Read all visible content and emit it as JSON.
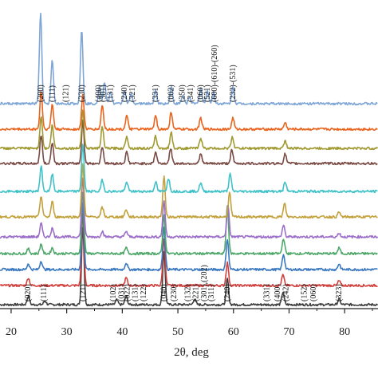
{
  "chart_data": {
    "type": "line",
    "title": "",
    "xlabel": "2θ, deg",
    "ylabel": "",
    "xlim": [
      18,
      86
    ],
    "x_ticks": [
      "20",
      "30",
      "40",
      "50",
      "60",
      "70",
      "80"
    ],
    "x_tick_values": [
      20,
      30,
      40,
      50,
      60,
      70,
      80
    ],
    "legend": "none",
    "grid": false,
    "series": [
      {
        "color": "#3f3f3f",
        "peaks": [
          [
            23.1,
            0.09
          ],
          [
            26.1,
            0.04
          ],
          [
            32.9,
            0.82
          ],
          [
            39.0,
            0.05
          ],
          [
            40.7,
            0.09
          ],
          [
            47.5,
            0.56
          ],
          [
            53.0,
            0.06
          ],
          [
            58.9,
            0.27
          ],
          [
            68.9,
            0.13
          ],
          [
            79.0,
            0.06
          ]
        ]
      },
      {
        "color": "#d2403d",
        "peaks": [
          [
            23.1,
            0.08
          ],
          [
            32.9,
            0.75
          ],
          [
            40.7,
            0.08
          ],
          [
            47.5,
            0.5
          ],
          [
            58.9,
            0.24
          ],
          [
            68.9,
            0.11
          ],
          [
            79.0,
            0.05
          ]
        ]
      },
      {
        "color": "#3a79c1",
        "peaks": [
          [
            23.1,
            0.06
          ],
          [
            25.4,
            0.09
          ],
          [
            32.9,
            0.7
          ],
          [
            40.7,
            0.07
          ],
          [
            47.5,
            0.45
          ],
          [
            58.9,
            0.32
          ],
          [
            69.0,
            0.16
          ],
          [
            79.0,
            0.06
          ]
        ]
      },
      {
        "color": "#4fa86a",
        "peaks": [
          [
            23.1,
            0.05
          ],
          [
            25.4,
            0.1
          ],
          [
            27.4,
            0.06
          ],
          [
            32.9,
            0.65
          ],
          [
            40.7,
            0.06
          ],
          [
            47.5,
            0.4
          ],
          [
            58.9,
            0.5
          ],
          [
            69.0,
            0.16
          ],
          [
            79.0,
            0.06
          ]
        ]
      },
      {
        "color": "#9b6ec9",
        "peaks": [
          [
            25.4,
            0.14
          ],
          [
            27.4,
            0.09
          ],
          [
            32.9,
            0.62
          ],
          [
            36.4,
            0.06
          ],
          [
            40.7,
            0.06
          ],
          [
            47.5,
            0.38
          ],
          [
            59.0,
            0.33
          ],
          [
            69.0,
            0.12
          ],
          [
            79.0,
            0.04
          ]
        ]
      },
      {
        "color": "#c3a13d",
        "peaks": [
          [
            25.4,
            0.22
          ],
          [
            27.4,
            0.16
          ],
          [
            32.9,
            0.55
          ],
          [
            36.4,
            0.1
          ],
          [
            40.7,
            0.08
          ],
          [
            47.5,
            0.42
          ],
          [
            59.3,
            0.25
          ],
          [
            69.2,
            0.14
          ],
          [
            79.0,
            0.05
          ]
        ]
      },
      {
        "color": "#3fc2c8",
        "peaks": [
          [
            25.4,
            0.26
          ],
          [
            27.4,
            0.18
          ],
          [
            32.9,
            0.5
          ],
          [
            36.4,
            0.12
          ],
          [
            40.8,
            0.1
          ],
          [
            46.0,
            0.1
          ],
          [
            48.3,
            0.14
          ],
          [
            54.1,
            0.09
          ],
          [
            59.4,
            0.18
          ],
          [
            69.3,
            0.1
          ]
        ]
      },
      {
        "color": "#7a4a44",
        "peaks": [
          [
            25.4,
            0.3
          ],
          [
            27.4,
            0.22
          ],
          [
            32.9,
            0.45
          ],
          [
            36.4,
            0.18
          ],
          [
            40.8,
            0.12
          ],
          [
            46.0,
            0.12
          ],
          [
            48.7,
            0.16
          ],
          [
            54.1,
            0.1
          ],
          [
            59.7,
            0.14
          ],
          [
            69.3,
            0.1
          ]
        ]
      },
      {
        "color": "#a19a32",
        "peaks": [
          [
            25.4,
            0.34
          ],
          [
            27.4,
            0.24
          ],
          [
            32.9,
            0.4
          ],
          [
            36.4,
            0.22
          ],
          [
            40.8,
            0.13
          ],
          [
            46.0,
            0.13
          ],
          [
            48.8,
            0.17
          ],
          [
            54.1,
            0.11
          ],
          [
            59.8,
            0.12
          ],
          [
            69.3,
            0.08
          ]
        ]
      },
      {
        "color": "#e9641e",
        "peaks": [
          [
            25.4,
            0.4
          ],
          [
            27.4,
            0.26
          ],
          [
            32.9,
            0.36
          ],
          [
            36.4,
            0.25
          ],
          [
            40.8,
            0.14
          ],
          [
            46.0,
            0.14
          ],
          [
            48.8,
            0.18
          ],
          [
            54.1,
            0.12
          ],
          [
            59.9,
            0.12
          ],
          [
            69.3,
            0.07
          ]
        ]
      },
      {
        "color": "#7ea6d6",
        "peaks": [
          [
            25.3,
            0.95
          ],
          [
            27.4,
            0.45
          ],
          [
            32.7,
            0.78
          ],
          [
            35.9,
            0.18
          ],
          [
            36.8,
            0.22
          ],
          [
            37.9,
            0.12
          ],
          [
            40.4,
            0.14
          ],
          [
            41.6,
            0.1
          ],
          [
            46.0,
            0.14
          ],
          [
            48.8,
            0.18
          ],
          [
            50.9,
            0.09
          ],
          [
            52.1,
            0.07
          ],
          [
            54.1,
            0.17
          ],
          [
            55.3,
            0.14
          ],
          [
            56.4,
            0.12
          ],
          [
            59.9,
            0.18
          ]
        ]
      }
    ],
    "annotations_top": [
      {
        "text": "(200)",
        "x": 25.3
      },
      {
        "text": "(111)",
        "x": 27.4
      },
      {
        "text": "(121)",
        "x": 29.8
      },
      {
        "text": "(230)",
        "x": 32.7
      },
      {
        "text": "(400)",
        "x": 35.7
      },
      {
        "text": "(301)",
        "x": 36.6
      },
      {
        "text": "(131)",
        "x": 37.9
      },
      {
        "text": "(240)",
        "x": 40.4
      },
      {
        "text": "(321)",
        "x": 41.8
      },
      {
        "text": "(331)",
        "x": 46.0
      },
      {
        "text": "(002)",
        "x": 48.8
      },
      {
        "text": "(250)",
        "x": 50.8
      },
      {
        "text": "(341)",
        "x": 52.3
      },
      {
        "text": "(060)",
        "x": 54.1
      },
      {
        "text": "(521)",
        "x": 55.3
      },
      {
        "text": "(600)-(610)-(260)",
        "x": 56.6
      },
      {
        "text": "(232)-(531)",
        "x": 59.9
      }
    ],
    "annotations_bottom": [
      {
        "text": "(020)",
        "x": 23.0
      },
      {
        "text": "(111)",
        "x": 25.9
      },
      {
        "text": "(121)",
        "x": 32.9
      },
      {
        "text": "(102)",
        "x": 38.4
      },
      {
        "text": "(031)",
        "x": 39.9
      },
      {
        "text": "(022)",
        "x": 40.9
      },
      {
        "text": "(131)",
        "x": 42.3
      },
      {
        "text": "(122)",
        "x": 43.8
      },
      {
        "text": "(040)",
        "x": 47.5
      },
      {
        "text": "(230)",
        "x": 49.3
      },
      {
        "text": "(132)",
        "x": 51.8
      },
      {
        "text": "(221)",
        "x": 53.2
      },
      {
        "text": "(301),(202)",
        "x": 54.7
      },
      {
        "text": "(311)",
        "x": 56.0
      },
      {
        "text": "(240)",
        "x": 58.9
      },
      {
        "text": "(331)",
        "x": 66.0
      },
      {
        "text": "(400)",
        "x": 67.9
      },
      {
        "text": "(242)",
        "x": 69.4
      },
      {
        "text": "(152)",
        "x": 72.7
      },
      {
        "text": "(060)",
        "x": 74.4
      },
      {
        "text": "(323)",
        "x": 79.0
      }
    ]
  }
}
